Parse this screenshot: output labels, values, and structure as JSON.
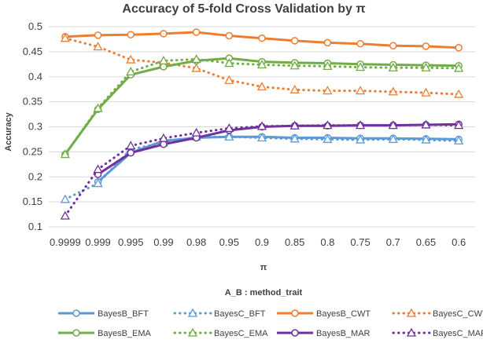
{
  "chart_data": {
    "type": "line",
    "title": "Accuracy of 5-fold Cross Validation by π",
    "xlabel": "π",
    "ylabel": "Accuracy",
    "caption": "A_B : method_trait",
    "categories": [
      "0.9999",
      "0.999",
      "0.995",
      "0.99",
      "0.98",
      "0.95",
      "0.9",
      "0.85",
      "0.8",
      "0.75",
      "0.7",
      "0.65",
      "0.6"
    ],
    "y_ticks": [
      "0.1",
      "0.15",
      "0.2",
      "0.25",
      "0.3",
      "0.35",
      "0.4",
      "0.45",
      "0.5"
    ],
    "ylim": [
      0.1,
      0.5
    ],
    "grid": true,
    "legend_position": "bottom",
    "series": [
      {
        "name": "BayesB_BFT",
        "color": "#5b9bd5",
        "style": "solid",
        "marker": "circle",
        "values": [
          null,
          0.19,
          0.248,
          0.272,
          0.278,
          0.28,
          0.28,
          0.278,
          0.278,
          0.277,
          0.277,
          0.276,
          0.275
        ]
      },
      {
        "name": "BayesC_BFT",
        "color": "#5b9bd5",
        "style": "dotted",
        "marker": "triangle",
        "values": [
          0.155,
          0.187,
          0.255,
          0.268,
          0.28,
          0.28,
          0.278,
          0.276,
          0.275,
          0.274,
          0.275,
          0.274,
          0.272
        ]
      },
      {
        "name": "BayesB_CWT",
        "color": "#ed7d31",
        "style": "solid",
        "marker": "circle",
        "values": [
          0.48,
          0.483,
          0.484,
          0.486,
          0.489,
          0.482,
          0.477,
          0.472,
          0.468,
          0.466,
          0.462,
          0.461,
          0.458
        ]
      },
      {
        "name": "BayesC_CWT",
        "color": "#ed7d31",
        "style": "dotted",
        "marker": "triangle",
        "values": [
          0.477,
          0.46,
          0.434,
          0.428,
          0.417,
          0.393,
          0.38,
          0.374,
          0.372,
          0.372,
          0.37,
          0.368,
          0.365
        ]
      },
      {
        "name": "BayesB_EMA",
        "color": "#70ad47",
        "style": "solid",
        "marker": "circle",
        "values": [
          0.245,
          0.335,
          0.404,
          0.42,
          0.432,
          0.437,
          0.43,
          0.428,
          0.427,
          0.425,
          0.424,
          0.423,
          0.422
        ]
      },
      {
        "name": "BayesC_EMA",
        "color": "#70ad47",
        "style": "dotted",
        "marker": "triangle",
        "values": [
          0.245,
          0.337,
          0.41,
          0.432,
          0.435,
          0.427,
          0.424,
          0.422,
          0.421,
          0.419,
          0.418,
          0.418,
          0.417
        ]
      },
      {
        "name": "BayesB_MAR",
        "color": "#7030a0",
        "style": "solid",
        "marker": "circle",
        "values": [
          null,
          0.205,
          0.248,
          0.265,
          0.278,
          0.293,
          0.3,
          0.302,
          0.302,
          0.303,
          0.303,
          0.304,
          0.305
        ]
      },
      {
        "name": "BayesC_MAR",
        "color": "#7030a0",
        "style": "dotted",
        "marker": "triangle",
        "values": [
          0.122,
          0.215,
          0.262,
          0.277,
          0.288,
          0.297,
          0.301,
          0.302,
          0.303,
          0.303,
          0.303,
          0.304,
          0.303
        ]
      }
    ]
  }
}
